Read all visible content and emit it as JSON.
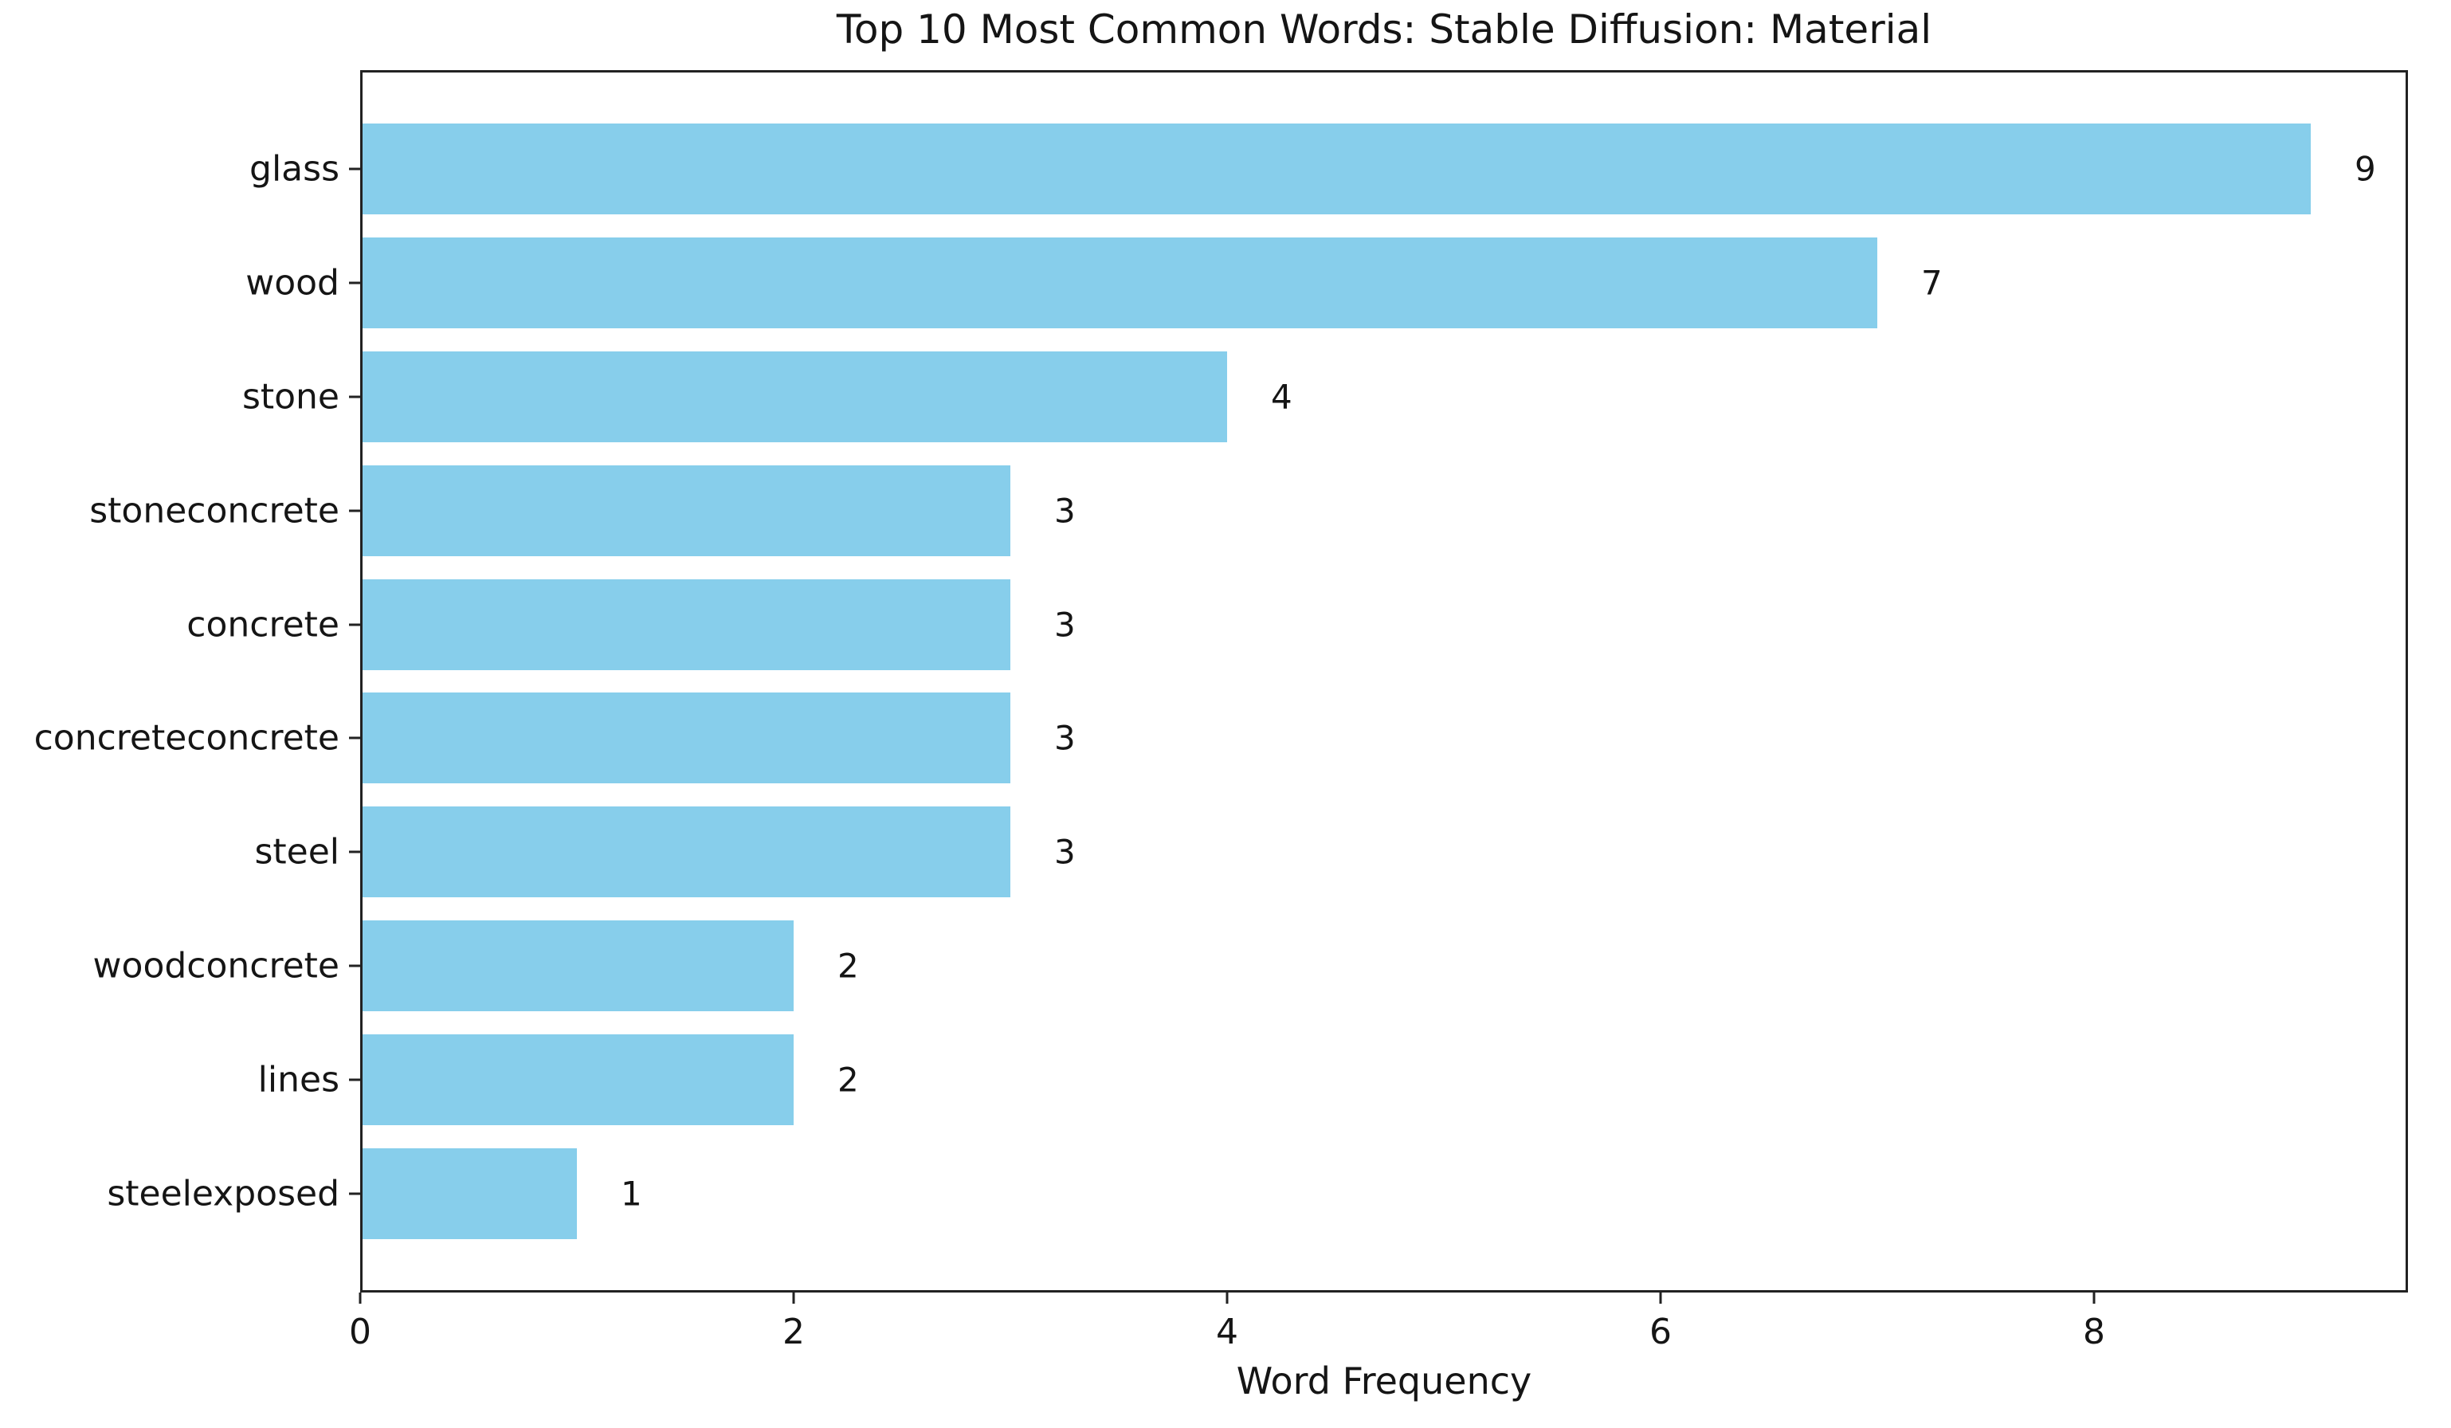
{
  "chart_data": {
    "type": "bar",
    "orientation": "horizontal",
    "title": "Top 10 Most Common Words: Stable Diffusion: Material",
    "xlabel": "Word Frequency",
    "ylabel": "",
    "categories": [
      "glass",
      "wood",
      "stone",
      "stoneconcrete",
      "concrete",
      "concreteconcrete",
      "steel",
      "woodconcrete",
      "lines",
      "steelexposed"
    ],
    "values": [
      9,
      7,
      4,
      3,
      3,
      3,
      3,
      2,
      2,
      1
    ],
    "value_labels": [
      "9",
      "7",
      "4",
      "3",
      "3",
      "3",
      "3",
      "2",
      "2",
      "1"
    ],
    "xticks": [
      "0",
      "2",
      "4",
      "6",
      "8"
    ],
    "xtick_values": [
      0,
      2,
      4,
      6,
      8
    ],
    "xlim": [
      0,
      9.45
    ],
    "grid": false,
    "legend": null,
    "bar_color": "#87CEEB",
    "spine_color": "#222222",
    "text_color": "#151515",
    "background_color": "#ffffff"
  }
}
